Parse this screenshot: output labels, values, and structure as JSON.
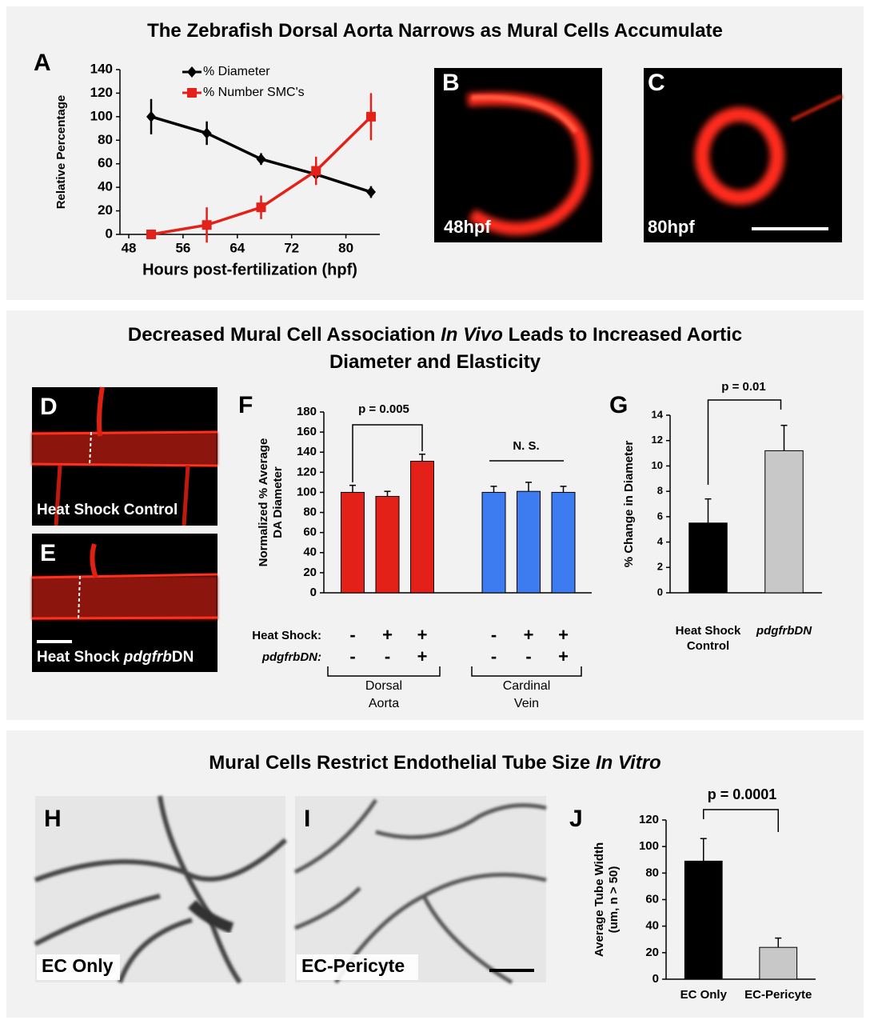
{
  "titles": [
    {
      "lines": [
        [
          {
            "text": "The Zebrafish Dorsal Aorta Narrows as Mural Cells Accumulate"
          }
        ]
      ]
    },
    {
      "lines": [
        [
          {
            "text": "Decreased Mural Cell Association "
          },
          {
            "text": "In Vivo",
            "italic": true
          },
          {
            "text": " Leads to Increased Aortic"
          }
        ],
        [
          {
            "text": "Diameter and Elasticity"
          }
        ]
      ]
    },
    {
      "lines": [
        [
          {
            "text": "Mural Cells Restrict Endothelial Tube Size "
          },
          {
            "text": "In Vitro",
            "italic": true
          }
        ]
      ]
    }
  ],
  "panel_labels": [
    "A",
    "B",
    "C",
    "D",
    "E",
    "F",
    "G",
    "H",
    "I",
    "J"
  ],
  "images": [
    {
      "panel": "B",
      "caption": [
        {
          "text": "48hpf"
        }
      ]
    },
    {
      "panel": "C",
      "caption": [
        {
          "text": "80hpf"
        }
      ]
    },
    {
      "panel": "D",
      "caption": [
        {
          "text": "Heat Shock Control"
        }
      ]
    },
    {
      "panel": "E",
      "caption": [
        {
          "text": "Heat Shock "
        },
        {
          "text": "pdgfrb",
          "italic": true
        },
        {
          "text": "DN"
        }
      ]
    },
    {
      "panel": "H",
      "caption": [
        {
          "text": "EC Only"
        }
      ]
    },
    {
      "panel": "I",
      "caption": [
        {
          "text": "EC-Pericyte"
        }
      ]
    }
  ],
  "chart_data": [
    {
      "type": "line",
      "ylabel": [
        "Relative Percentage"
      ],
      "xlabel": "Hours post-fertilization (hpf)",
      "x": [
        51.3,
        59.5,
        67.5,
        75.6,
        83.7
      ],
      "xlim": [
        46.7,
        85
      ],
      "xticks": [
        48,
        56,
        64,
        72,
        80
      ],
      "ylim": [
        0,
        140
      ],
      "yticks": [
        0,
        20,
        40,
        60,
        80,
        100,
        120,
        140
      ],
      "series": [
        {
          "name": "% Diameter",
          "color": "#000000",
          "marker": "diamond",
          "values": [
            100,
            86,
            64,
            51,
            36
          ],
          "errors": [
            15,
            10,
            5,
            5,
            5
          ]
        },
        {
          "name": "% Number SMC's",
          "color": "#e32119",
          "marker": "square",
          "values": [
            0,
            8,
            23,
            54,
            100
          ],
          "errors": [
            1,
            15,
            10,
            12,
            20
          ]
        }
      ]
    },
    {
      "type": "bar",
      "ylabel": [
        "Normalized % Average",
        "DA Diameter"
      ],
      "categories": [
        null,
        null,
        null,
        null,
        null,
        null
      ],
      "values": [
        100,
        96,
        131,
        100,
        101,
        100
      ],
      "errors": [
        7,
        5,
        7,
        6,
        9,
        6
      ],
      "colors": [
        "#e32119",
        "#e32119",
        "#e32119",
        "#3d7cf0",
        "#3d7cf0",
        "#3d7cf0"
      ],
      "ylim": [
        0,
        180
      ],
      "yticks": [
        0,
        20,
        40,
        60,
        80,
        100,
        120,
        140,
        160,
        180
      ],
      "annotations": [
        "p = 0.005",
        "N. S."
      ],
      "rows": [
        {
          "label": "Heat Shock:",
          "italic": false,
          "marks": [
            "-",
            "+",
            "+",
            "-",
            "+",
            "+"
          ]
        },
        {
          "label": "pdgfrbDN:",
          "italic": true,
          "marks": [
            "-",
            "-",
            "+",
            "-",
            "-",
            "+"
          ]
        }
      ],
      "groups": [
        {
          "name": [
            "Dorsal",
            "Aorta"
          ]
        },
        {
          "name": [
            "Cardinal",
            "Vein"
          ]
        }
      ]
    },
    {
      "type": "bar",
      "ylabel": [
        "% Change in Diameter"
      ],
      "categories": [
        [
          "Heat Shock",
          "Control"
        ],
        [
          "pdgfrbDN"
        ]
      ],
      "values": [
        5.5,
        11.2
      ],
      "errors": [
        1.9,
        2.0
      ],
      "colors": [
        "#000000",
        "#c8c8c8"
      ],
      "ylim": [
        0,
        14
      ],
      "yticks": [
        0,
        2,
        4,
        6,
        8,
        10,
        12,
        14
      ],
      "annotations": [
        "p = 0.01"
      ]
    },
    {
      "type": "bar",
      "ylabel": [
        "Average Tube Width",
        "(um, n > 50)"
      ],
      "categories": [
        [
          "EC Only"
        ],
        [
          "EC-Pericyte"
        ]
      ],
      "values": [
        89,
        24
      ],
      "errors": [
        17,
        7
      ],
      "colors": [
        "#000000",
        "#c8c8c8"
      ],
      "ylim": [
        0,
        120
      ],
      "yticks": [
        0,
        20,
        40,
        60,
        80,
        100,
        120
      ],
      "annotations": [
        "p = 0.0001"
      ]
    }
  ]
}
